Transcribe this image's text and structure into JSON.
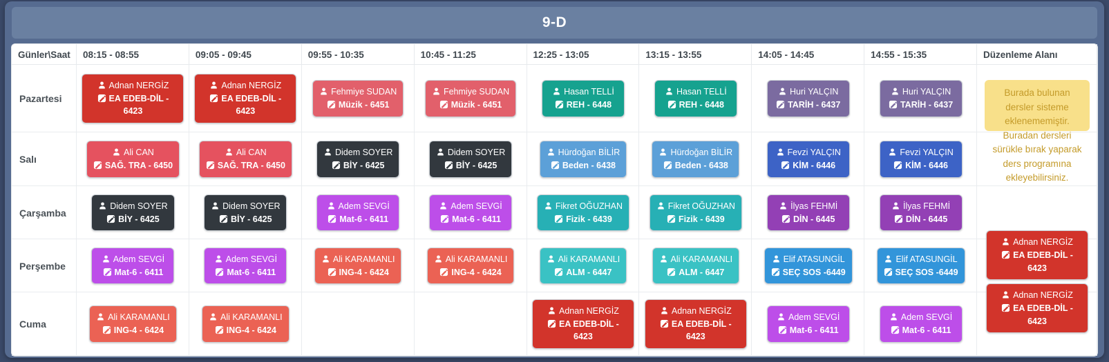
{
  "header": {
    "title": "9-D"
  },
  "icons": {
    "teacher": "user-icon",
    "course": "pencil-square-icon"
  },
  "timetable": {
    "corner_header": "Günler\\Saat",
    "time_headers": [
      "08:15 - 08:55",
      "09:05 - 09:45",
      "09:55 - 10:35",
      "10:45 - 11:25",
      "12:25 - 13:05",
      "13:15 - 13:55",
      "14:05 - 14:45",
      "14:55 - 15:35"
    ],
    "edit_area_header": "Düzenleme Alanı",
    "days": [
      {
        "day": "Pazartesi",
        "lessons": [
          {
            "teacher": "Adnan NERGİZ",
            "course": "EA EDEB-DİL - 6423",
            "color": "#d2342b"
          },
          {
            "teacher": "Adnan NERGİZ",
            "course": "EA EDEB-DİL - 6423",
            "color": "#d2342b"
          },
          {
            "teacher": "Fehmiye SUDAN",
            "course": "Müzik - 6451",
            "color": "#e2606b"
          },
          {
            "teacher": "Fehmiye SUDAN",
            "course": "Müzik - 6451",
            "color": "#e2606b"
          },
          {
            "teacher": "Hasan TELLİ",
            "course": "REH - 6448",
            "color": "#16a28f"
          },
          {
            "teacher": "Hasan TELLİ",
            "course": "REH - 6448",
            "color": "#16a28f"
          },
          {
            "teacher": "Huri YALÇIN",
            "course": "TARİH - 6437",
            "color": "#7b6ba0"
          },
          {
            "teacher": "Huri YALÇIN",
            "course": "TARİH - 6437",
            "color": "#7b6ba0"
          }
        ]
      },
      {
        "day": "Salı",
        "lessons": [
          {
            "teacher": "Ali CAN",
            "course": "SAĞ. TRA - 6450",
            "color": "#e5525f"
          },
          {
            "teacher": "Ali CAN",
            "course": "SAĞ. TRA - 6450",
            "color": "#e5525f"
          },
          {
            "teacher": "Didem SOYER",
            "course": "BİY - 6425",
            "color": "#32383e"
          },
          {
            "teacher": "Didem SOYER",
            "course": "BİY - 6425",
            "color": "#32383e"
          },
          {
            "teacher": "Hürdoğan BİLİR",
            "course": "Beden - 6438",
            "color": "#5ca0d8"
          },
          {
            "teacher": "Hürdoğan BİLİR",
            "course": "Beden - 6438",
            "color": "#5ca0d8"
          },
          {
            "teacher": "Fevzi YALÇIN",
            "course": "KİM - 6446",
            "color": "#3d63c6"
          },
          {
            "teacher": "Fevzi YALÇIN",
            "course": "KİM - 6446",
            "color": "#3d63c6"
          }
        ]
      },
      {
        "day": "Çarşamba",
        "lessons": [
          {
            "teacher": "Didem SOYER",
            "course": "BİY - 6425",
            "color": "#32383e"
          },
          {
            "teacher": "Didem SOYER",
            "course": "BİY - 6425",
            "color": "#32383e"
          },
          {
            "teacher": "Adem SEVGİ",
            "course": "Mat-6 - 6411",
            "color": "#bd4ee9"
          },
          {
            "teacher": "Adem SEVGİ",
            "course": "Mat-6 - 6411",
            "color": "#bd4ee9"
          },
          {
            "teacher": "Fikret OĞUZHAN",
            "course": "Fizik - 6439",
            "color": "#27b0b5"
          },
          {
            "teacher": "Fikret OĞUZHAN",
            "course": "Fizik - 6439",
            "color": "#27b0b5"
          },
          {
            "teacher": "İlyas FEHMİ",
            "course": "DİN - 6445",
            "color": "#9340b5"
          },
          {
            "teacher": "İlyas FEHMİ",
            "course": "DİN - 6445",
            "color": "#9340b5"
          }
        ]
      },
      {
        "day": "Perşembe",
        "lessons": [
          {
            "teacher": "Adem SEVGİ",
            "course": "Mat-6 - 6411",
            "color": "#bd4ee9"
          },
          {
            "teacher": "Adem SEVGİ",
            "course": "Mat-6 - 6411",
            "color": "#bd4ee9"
          },
          {
            "teacher": "Ali KARAMANLI",
            "course": "ING-4 - 6424",
            "color": "#eb6254"
          },
          {
            "teacher": "Ali KARAMANLI",
            "course": "ING-4 - 6424",
            "color": "#eb6254"
          },
          {
            "teacher": "Ali KARAMANLI",
            "course": "ALM - 6447",
            "color": "#3ac2c4"
          },
          {
            "teacher": "Ali KARAMANLI",
            "course": "ALM - 6447",
            "color": "#3ac2c4"
          },
          {
            "teacher": "Elif ATASUNGİL",
            "course": "SEÇ SOS -6449",
            "color": "#3295da"
          },
          {
            "teacher": "Elif ATASUNGİL",
            "course": "SEÇ SOS -6449",
            "color": "#3295da"
          }
        ]
      },
      {
        "day": "Cuma",
        "lessons": [
          {
            "teacher": "Ali KARAMANLI",
            "course": "ING-4 - 6424",
            "color": "#eb6254"
          },
          {
            "teacher": "Ali KARAMANLI",
            "course": "ING-4 - 6424",
            "color": "#eb6254"
          },
          null,
          null,
          {
            "teacher": "Adnan NERGİZ",
            "course": "EA EDEB-DİL - 6423",
            "color": "#d2342b"
          },
          {
            "teacher": "Adnan NERGİZ",
            "course": "EA EDEB-DİL - 6423",
            "color": "#d2342b"
          },
          {
            "teacher": "Adem SEVGİ",
            "course": "Mat-6 - 6411",
            "color": "#bd4ee9"
          },
          {
            "teacher": "Adem SEVGİ",
            "course": "Mat-6 - 6411",
            "color": "#bd4ee9"
          }
        ]
      }
    ],
    "edit_area": {
      "note": "Burada bulunan dersler sisteme eklenememiştir. Buradan dersleri sürükle bırak yaparak ders programına ekleyebilirsiniz.",
      "pending_lessons": [
        {
          "teacher": "Adnan NERGİZ",
          "course": "EA EDEB-DİL - 6423",
          "color": "#d2342b"
        },
        {
          "teacher": "Adnan NERGİZ",
          "course": "EA EDEB-DİL - 6423",
          "color": "#d2342b"
        }
      ]
    }
  },
  "colors": {
    "page_background": "#3b4a69",
    "panel_background": "#566b90",
    "title_band_background": "#6a80a1",
    "table_background": "#ffffff",
    "grid_border": "#e6e9ec",
    "note_background": "#f8e08a",
    "note_text": "#c49b2a"
  }
}
